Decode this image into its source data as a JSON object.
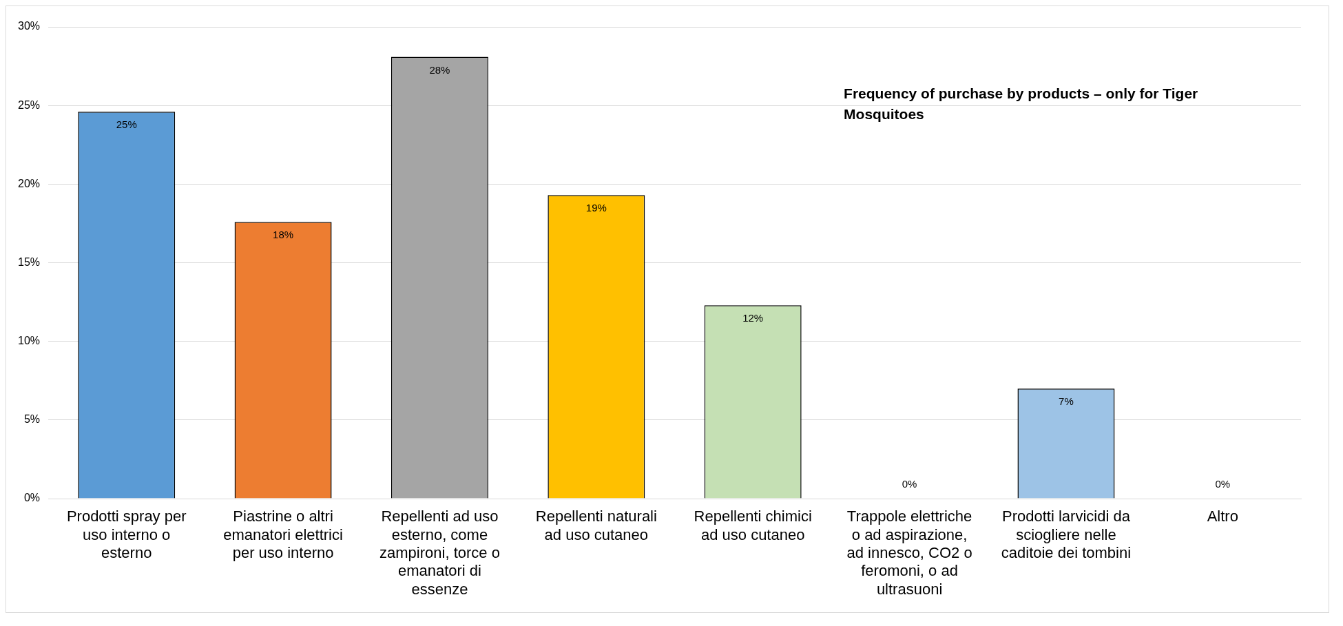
{
  "chart_data": {
    "type": "bar",
    "title": "Frequency of purchase by products – only for Tiger Mosquitoes",
    "categories": [
      "Prodotti spray per uso interno o esterno",
      "Piastrine o altri emanatori elettrici per uso interno",
      "Repellenti ad uso esterno, come zampironi, torce o emanatori di essenze",
      "Repellenti naturali ad uso cutaneo",
      "Repellenti chimici ad uso cutaneo",
      "Trappole elettriche o ad aspirazione, ad innesco, CO2 o feromoni, o ad ultrasuoni",
      "Prodotti larvicidi da sciogliere nelle caditoie dei tombini",
      "Altro"
    ],
    "values": [
      24.6,
      17.6,
      28.1,
      19.3,
      12.3,
      0,
      7.0,
      0
    ],
    "value_labels": [
      "25%",
      "18%",
      "28%",
      "19%",
      "12%",
      "0%",
      "7%",
      "0%"
    ],
    "colors": [
      "#5b9bd5",
      "#ed7d31",
      "#a5a5a5",
      "#ffc000",
      "#c5e0b4",
      "#4472c4",
      "#9dc3e6",
      "#f4b183"
    ],
    "ylim": [
      0,
      30
    ],
    "yticks": [
      {
        "value": 0,
        "label": "0%"
      },
      {
        "value": 5,
        "label": "5%"
      },
      {
        "value": 10,
        "label": "10%"
      },
      {
        "value": 15,
        "label": "15%"
      },
      {
        "value": 20,
        "label": "20%"
      },
      {
        "value": 25,
        "label": "25%"
      },
      {
        "value": 30,
        "label": "30%"
      }
    ],
    "grid": "y",
    "legend": false
  }
}
